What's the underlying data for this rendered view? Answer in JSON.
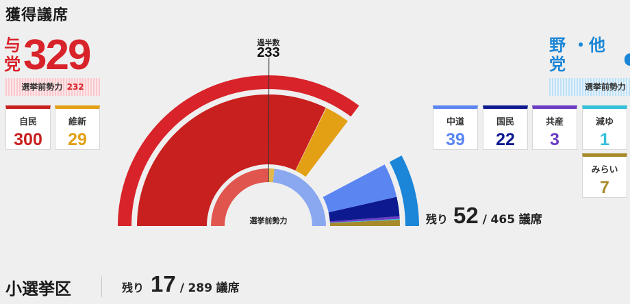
{
  "header": {
    "title": "獲得議席"
  },
  "ruling": {
    "label": "与党",
    "total": "329",
    "prev_label": "選挙前勢力",
    "prev_value": "232",
    "color": "#d8232a"
  },
  "opposition": {
    "label_line1": "野",
    "label_dot": "・他",
    "label_line2": "党",
    "prev_label": "選挙前勢力",
    "color": "#1b86d8"
  },
  "parties": [
    {
      "name": "自民",
      "seats": "300",
      "color": "#c8201e"
    },
    {
      "name": "維新",
      "seats": "29",
      "color": "#e3a014"
    },
    {
      "name": "中道",
      "seats": "39",
      "color": "#5b86f2"
    },
    {
      "name": "国民",
      "seats": "22",
      "color": "#0d1a8f"
    },
    {
      "name": "共産",
      "seats": "3",
      "color": "#6a3cc2"
    },
    {
      "name": "減ゆ",
      "seats": "1",
      "color": "#34c0d8"
    },
    {
      "name": "みらい",
      "seats": "7",
      "color": "#a78a2a"
    }
  ],
  "center": {
    "majority_label": "過半数",
    "majority_value": "233",
    "prev_label": "選挙前勢力"
  },
  "remaining": {
    "label": "残り",
    "value": "52",
    "slash": "/",
    "total": "465",
    "unit": "議席"
  },
  "smd": {
    "title": "小選挙区",
    "remaining_label": "残り",
    "remaining_value": "17",
    "slash": "/",
    "total": "289",
    "unit": "議席"
  },
  "chart_data": {
    "type": "pie",
    "total_seats": 465,
    "majority": 233,
    "ruling_total": 329,
    "series": [
      {
        "name": "自民",
        "values": [
          300
        ],
        "color": "#c8201e"
      },
      {
        "name": "維新",
        "values": [
          29
        ],
        "color": "#e3a014"
      },
      {
        "name": "中道",
        "values": [
          39
        ],
        "color": "#5b86f2"
      },
      {
        "name": "国民",
        "values": [
          22
        ],
        "color": "#0d1a8f"
      },
      {
        "name": "共産",
        "values": [
          3
        ],
        "color": "#6a3cc2"
      },
      {
        "name": "減ゆ",
        "values": [
          1
        ],
        "color": "#34c0d8"
      },
      {
        "name": "みらい",
        "values": [
          7
        ],
        "color": "#a78a2a"
      }
    ],
    "remaining": 52
  }
}
